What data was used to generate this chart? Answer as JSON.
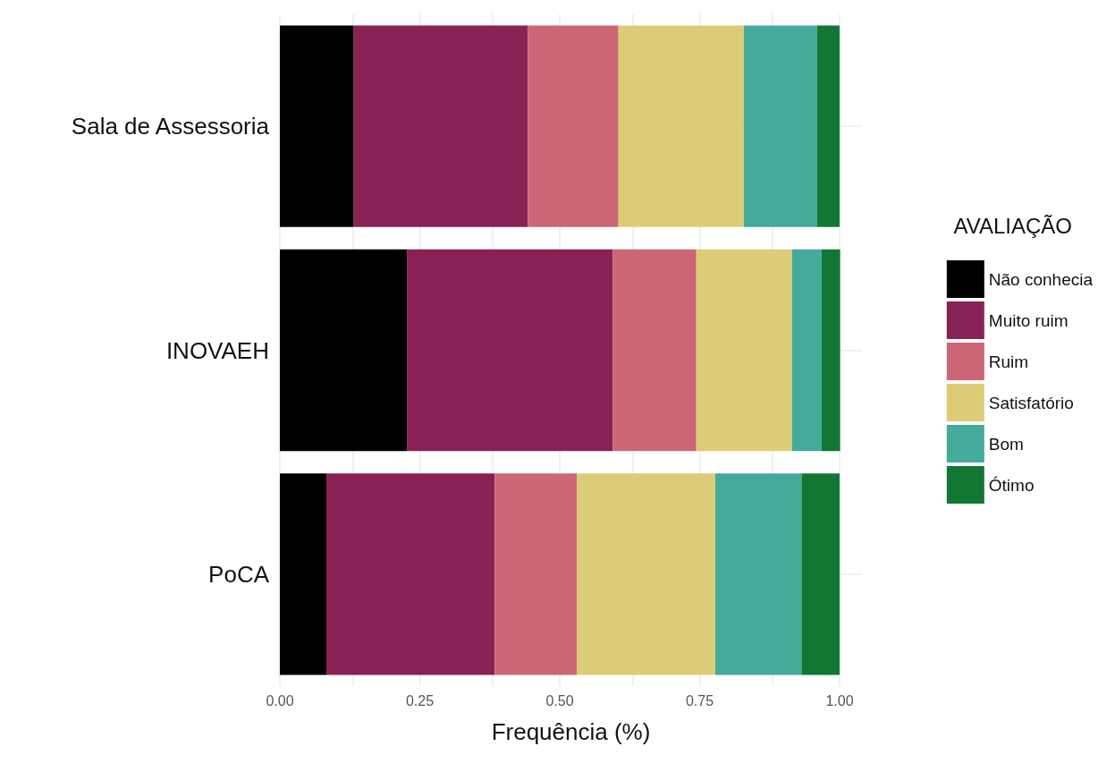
{
  "chart_data": {
    "type": "bar",
    "orientation": "horizontal",
    "stacked": true,
    "xlabel": "Frequência (%)",
    "legend_title": "AVALIAÇÃO",
    "legend": "right",
    "grid": true,
    "categories": [
      "Sala de Assessoria",
      "INOVAEH",
      "PoCA"
    ],
    "xlim": [
      0,
      1.04
    ],
    "xticks": [
      {
        "value": 0,
        "label": "0.00"
      },
      {
        "value": 0.25,
        "label": "0.25"
      },
      {
        "value": 0.5,
        "label": "0.50"
      },
      {
        "value": 0.75,
        "label": "0.75"
      },
      {
        "value": 1,
        "label": "1.00"
      }
    ],
    "series": [
      {
        "name": "Não conhecia",
        "color": "#000000",
        "values": [
          0.132,
          0.227,
          0.083
        ]
      },
      {
        "name": "Muito ruim",
        "color": "#882255",
        "values": [
          0.311,
          0.368,
          0.301
        ]
      },
      {
        "name": "Ruim",
        "color": "#cc6677",
        "values": [
          0.162,
          0.149,
          0.147
        ]
      },
      {
        "name": "Satisfatório",
        "color": "#ddcc77",
        "values": [
          0.224,
          0.171,
          0.247
        ]
      },
      {
        "name": "Bom",
        "color": "#44aa99",
        "values": [
          0.131,
          0.053,
          0.154
        ]
      },
      {
        "name": "Ótimo",
        "color": "#117733",
        "values": [
          0.04,
          0.033,
          0.068
        ]
      }
    ]
  }
}
